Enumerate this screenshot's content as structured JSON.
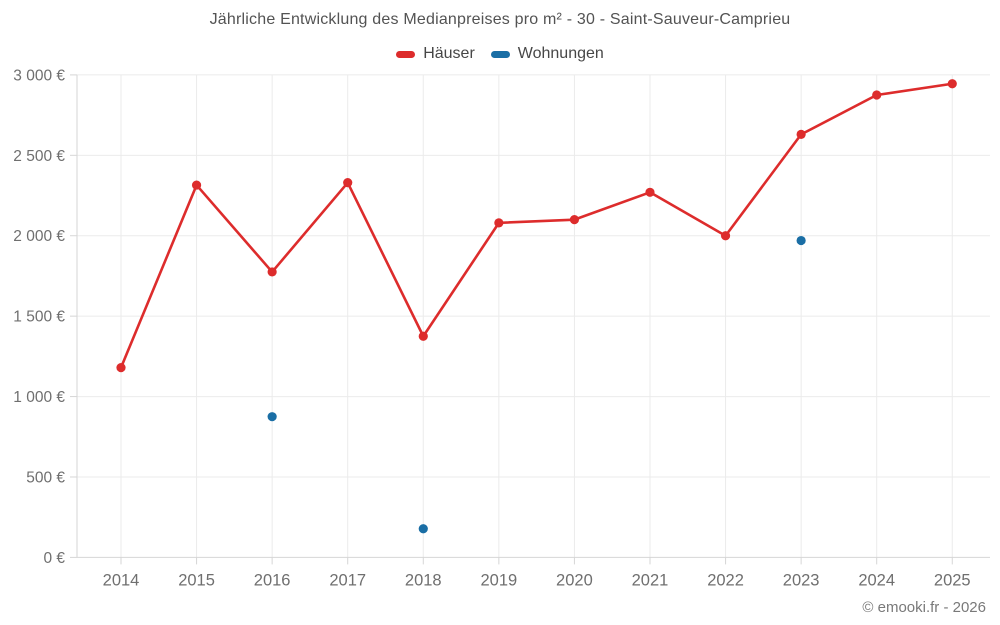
{
  "chart": {
    "title": "Jährliche Entwicklung des Medianpreises pro m² - 30 - Saint-Sauveur-Camprieu",
    "footer": "© emooki.fr - 2026"
  },
  "colors": {
    "grid": "#ebebeb",
    "axis": "#d6d6d6",
    "tick_text": "#6f6f6f",
    "title_text": "#535353",
    "haeuser_red": "#dd2c2c",
    "wohnungen_blue": "#1a6ea5"
  },
  "chart_data": {
    "type": "line",
    "title": "Jährliche Entwicklung des Medianpreises pro m² - 30 - Saint-Sauveur-Camprieu",
    "xlabel": "",
    "ylabel": "",
    "x": [
      2014,
      2015,
      2016,
      2017,
      2018,
      2019,
      2020,
      2021,
      2022,
      2023,
      2024,
      2025
    ],
    "series": [
      {
        "name": "Häuser",
        "key": "haeuser",
        "mode": "line-with-points",
        "color": "#dd2c2c",
        "values": [
          1180,
          2315,
          1775,
          2330,
          1375,
          2080,
          2100,
          2270,
          2000,
          2630,
          2875,
          2945
        ]
      },
      {
        "name": "Wohnungen",
        "key": "wohnungen",
        "mode": "points-only",
        "color": "#1a6ea5",
        "values": [
          null,
          null,
          875,
          null,
          178,
          null,
          null,
          null,
          null,
          1970,
          null,
          null
        ]
      }
    ],
    "ylim": [
      0,
      3000
    ],
    "ytick_step": 500,
    "yticks": [
      {
        "v": 0,
        "label": "0 €"
      },
      {
        "v": 500,
        "label": "500 €"
      },
      {
        "v": 1000,
        "label": "1 000 €"
      },
      {
        "v": 1500,
        "label": "1 500 €"
      },
      {
        "v": 2000,
        "label": "2 000 €"
      },
      {
        "v": 2500,
        "label": "2 500 €"
      },
      {
        "v": 3000,
        "label": "3 000 €"
      }
    ],
    "grid": true,
    "legend_position": "top-center"
  }
}
